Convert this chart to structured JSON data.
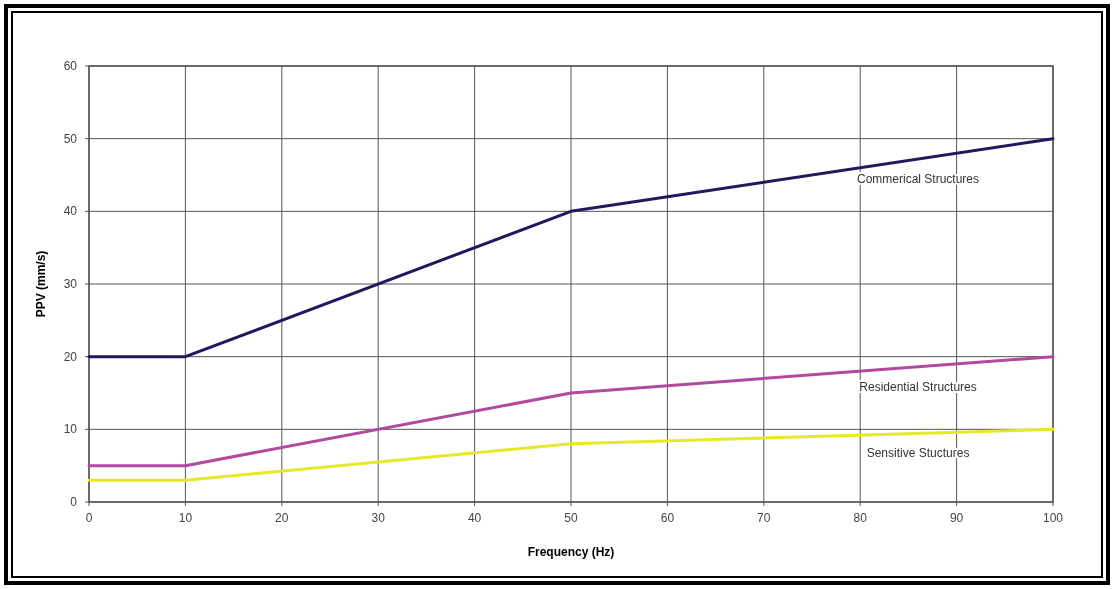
{
  "chart_data": {
    "type": "line",
    "xlabel": "Frequency (Hz)",
    "ylabel": "PPV (mm/s)",
    "x": [
      0,
      10,
      50,
      100
    ],
    "series": [
      {
        "name": "Commerical Structures",
        "color": "#1f1a5e",
        "values": [
          20,
          20,
          40,
          50
        ]
      },
      {
        "name": "Residential Structures",
        "color": "#b14a9e",
        "values": [
          5,
          5,
          15,
          20
        ]
      },
      {
        "name": "Sensitive Stuctures",
        "color": "#e8e82a",
        "values": [
          3,
          3,
          8,
          10
        ]
      }
    ],
    "xlim": [
      0,
      100
    ],
    "xticks": [
      0,
      10,
      20,
      30,
      40,
      50,
      60,
      70,
      80,
      90,
      100
    ],
    "ylim": [
      0,
      60
    ],
    "yticks": [
      0,
      10,
      20,
      30,
      40,
      50,
      60
    ],
    "grid": true,
    "legend": false,
    "marker": "none",
    "line_style": "solid"
  }
}
